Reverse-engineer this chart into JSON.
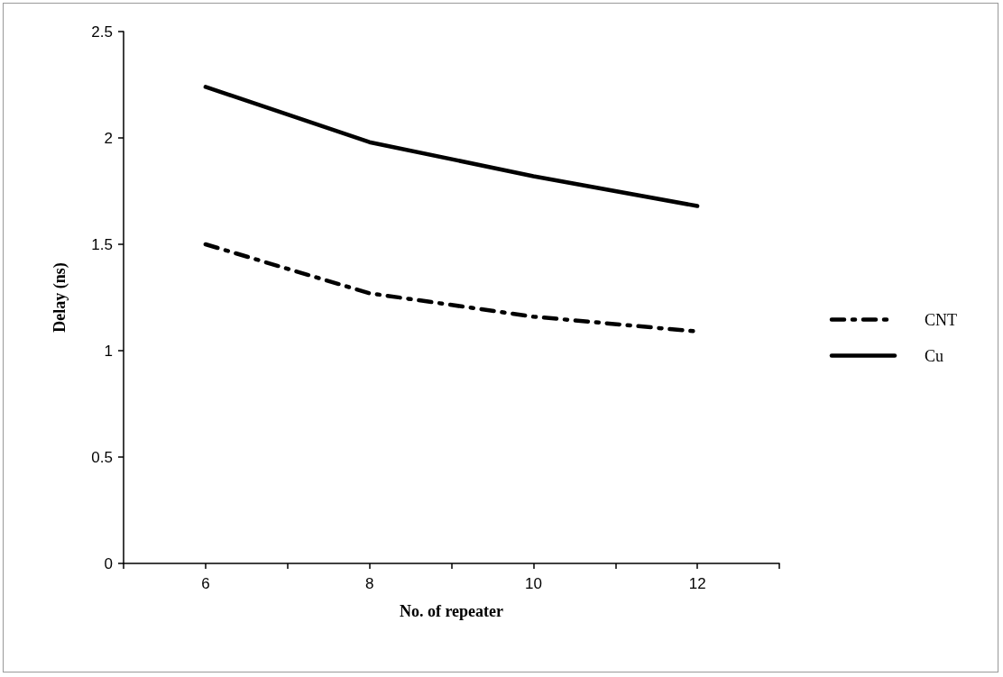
{
  "chart_data": {
    "type": "line",
    "xlabel": "No. of repeater",
    "ylabel": "Delay (ns)",
    "x": [
      6,
      8,
      10,
      12
    ],
    "series": [
      {
        "name": "CNT",
        "color": "#000000",
        "line_style": "dashed",
        "values": [
          1.5,
          1.27,
          1.16,
          1.09
        ]
      },
      {
        "name": "Cu",
        "color": "#000000",
        "line_style": "solid",
        "values": [
          2.24,
          1.98,
          1.82,
          1.68
        ]
      }
    ],
    "xlim": [
      5,
      13
    ],
    "xticks": [
      {
        "value": 5,
        "label": null
      },
      6,
      {
        "value": 7,
        "label": null
      },
      8,
      {
        "value": 9,
        "label": null
      },
      10,
      {
        "value": 11,
        "label": null
      },
      12,
      {
        "value": 13,
        "label": null
      }
    ],
    "ylim": [
      0,
      2.5
    ],
    "yticks": [
      0,
      0.5,
      1,
      1.5,
      2,
      2.5
    ],
    "grid": false,
    "legend": "right",
    "marker": "none"
  }
}
